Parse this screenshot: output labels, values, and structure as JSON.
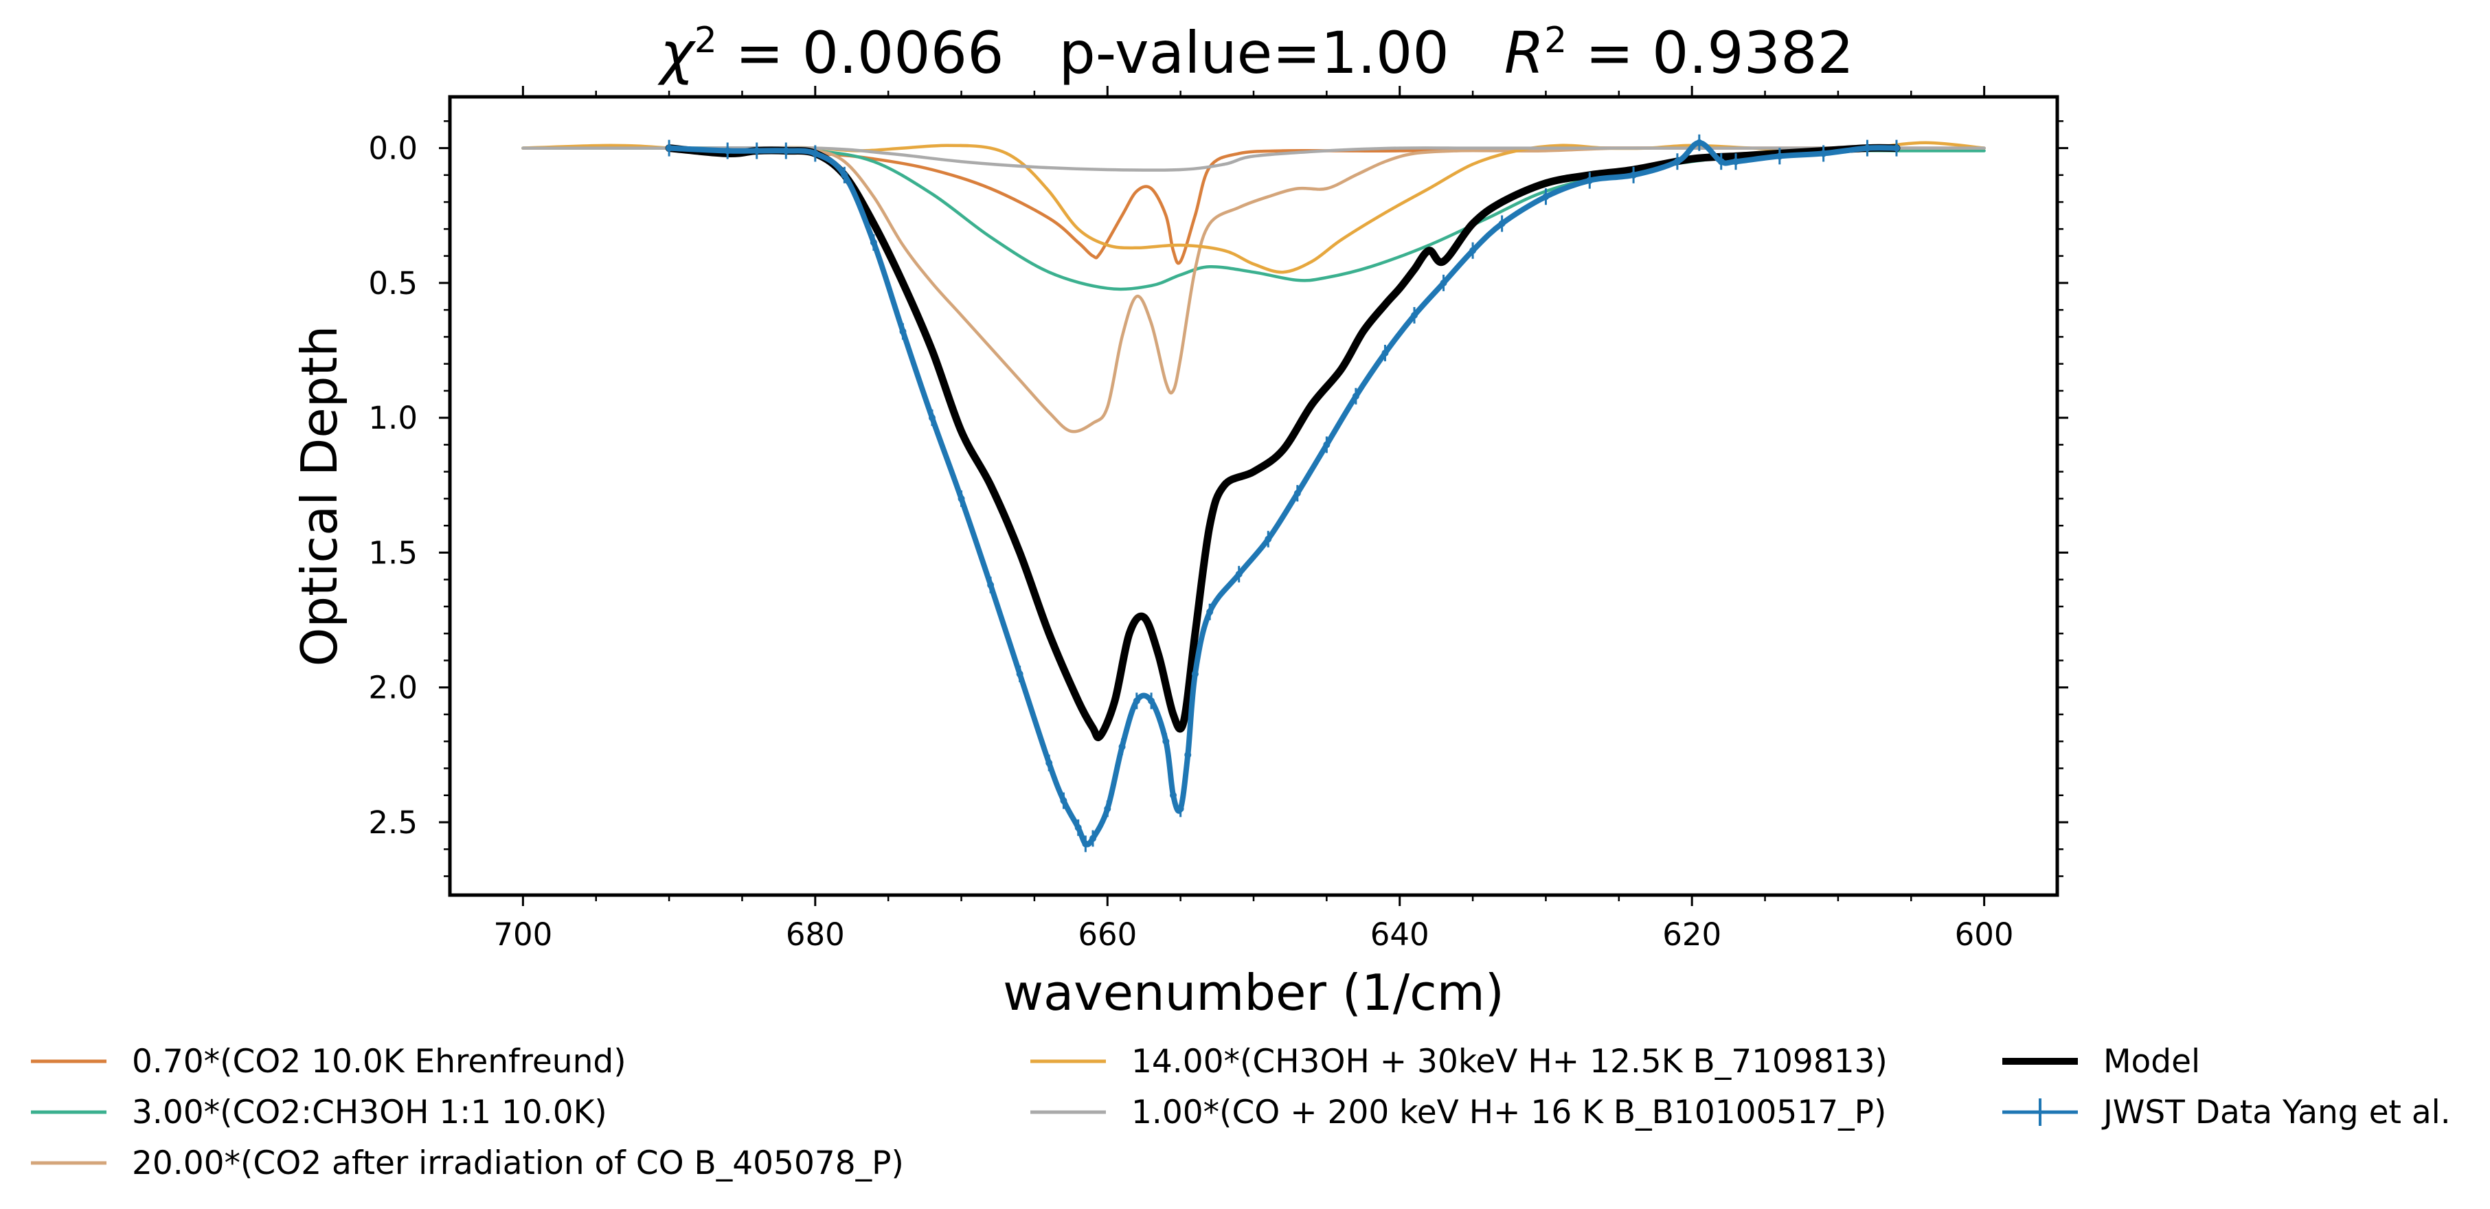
{
  "chart_data": {
    "type": "line",
    "title_parts": {
      "chi2": "0.0066",
      "p_value": "p-value=1.00",
      "r2": "0.9382"
    },
    "xlabel": "wavenumber (1/cm)",
    "ylabel": "Optical Depth",
    "x_inverted": true,
    "y_inverted": true,
    "xlim": [
      705,
      595
    ],
    "ylim": [
      -0.19,
      2.77
    ],
    "xticks": [
      700,
      680,
      660,
      640,
      620,
      600
    ],
    "xtick_labels": [
      "700",
      "680",
      "660",
      "640",
      "620",
      "600"
    ],
    "yticks": [
      0.0,
      0.5,
      1.0,
      1.5,
      2.0,
      2.5
    ],
    "ytick_labels": [
      "0.0",
      "0.5",
      "1.0",
      "1.5",
      "2.0",
      "2.5"
    ],
    "grid": false,
    "legend_position": "bottom, below axes, 3 columns",
    "series": [
      {
        "name": "0.70*(CO2 10.0K Ehrenfreund)",
        "color": "#d97f3c",
        "style": "line",
        "x": [
          700,
          690,
          680,
          676,
          672,
          668,
          664,
          662,
          661,
          660.5,
          659,
          658,
          657,
          656,
          655.5,
          655,
          654,
          653,
          651,
          648,
          644,
          640,
          630,
          620,
          610,
          600
        ],
        "y": [
          0.0,
          0.0,
          0.02,
          0.04,
          0.08,
          0.15,
          0.26,
          0.35,
          0.4,
          0.39,
          0.25,
          0.16,
          0.15,
          0.25,
          0.38,
          0.42,
          0.25,
          0.07,
          0.02,
          0.01,
          0.01,
          0.01,
          0.0,
          0.0,
          0.0,
          0.0
        ]
      },
      {
        "name": "3.00*(CO2:CH3OH 1:1 10.0K)",
        "color": "#3bb08f",
        "style": "line",
        "x": [
          700,
          690,
          685,
          680,
          676,
          672,
          668,
          664,
          660,
          657,
          655,
          653,
          650,
          647,
          645,
          642,
          638,
          634,
          630,
          625,
          620,
          615,
          610,
          605,
          600
        ],
        "y": [
          0.0,
          0.0,
          0.0,
          0.01,
          0.05,
          0.17,
          0.33,
          0.46,
          0.52,
          0.51,
          0.47,
          0.44,
          0.46,
          0.49,
          0.48,
          0.44,
          0.36,
          0.26,
          0.16,
          0.09,
          0.05,
          0.02,
          0.01,
          0.01,
          0.01
        ]
      },
      {
        "name": "20.00*(CO2 after irradiation of CO B_405078_P)",
        "color": "#d4a57a",
        "style": "line",
        "x": [
          700,
          690,
          683,
          680,
          678,
          676,
          674,
          672,
          670,
          668,
          666,
          664,
          662.5,
          661,
          660,
          659,
          658,
          657,
          656,
          655.5,
          655,
          654,
          653,
          651,
          649,
          647,
          645,
          643,
          641,
          639,
          636,
          633,
          630,
          625,
          620,
          610,
          600
        ],
        "y": [
          0.0,
          0.0,
          0.01,
          0.01,
          0.05,
          0.18,
          0.36,
          0.5,
          0.62,
          0.74,
          0.86,
          0.98,
          1.05,
          1.02,
          0.96,
          0.7,
          0.55,
          0.65,
          0.87,
          0.9,
          0.78,
          0.45,
          0.28,
          0.22,
          0.18,
          0.15,
          0.15,
          0.1,
          0.05,
          0.02,
          0.01,
          0.01,
          0.01,
          0.0,
          0.0,
          0.0,
          0.0
        ]
      },
      {
        "name": "14.00*(CH3OH + 30keV H+ 12.5K B_7109813)",
        "color": "#e6a73e",
        "style": "line",
        "x": [
          700,
          694,
          690,
          686,
          683,
          680,
          677,
          674,
          671,
          668,
          666,
          664,
          662,
          660,
          658,
          655,
          652,
          650,
          648,
          646,
          644,
          641,
          638,
          635,
          632,
          629,
          626,
          623,
          620,
          616,
          612,
          608,
          604,
          600
        ],
        "y": [
          0.0,
          -0.01,
          0.0,
          0.02,
          0.0,
          0.0,
          0.01,
          0.0,
          -0.01,
          0.0,
          0.05,
          0.16,
          0.3,
          0.36,
          0.37,
          0.36,
          0.38,
          0.43,
          0.46,
          0.42,
          0.34,
          0.24,
          0.15,
          0.06,
          0.01,
          -0.01,
          0.0,
          0.0,
          -0.01,
          0.0,
          0.01,
          0.0,
          -0.02,
          0.0
        ]
      },
      {
        "name": "1.00*(CO + 200 keV H+ 16 K B_B10100517_P)",
        "color": "#aaaaaa",
        "style": "line",
        "x": [
          700,
          690,
          680,
          675,
          670,
          665,
          660,
          655,
          652,
          650,
          645,
          640,
          635,
          630,
          620,
          610,
          600
        ],
        "y": [
          0.0,
          0.0,
          0.0,
          0.02,
          0.05,
          0.07,
          0.08,
          0.08,
          0.06,
          0.03,
          0.01,
          0.0,
          0.0,
          0.0,
          0.0,
          0.0,
          0.0
        ]
      },
      {
        "name": "Model",
        "color": "#000000",
        "style": "thick-line",
        "x": [
          690,
          686,
          684,
          682,
          680,
          678,
          676,
          674,
          672,
          670,
          668,
          666,
          664,
          662,
          661,
          660.5,
          659.5,
          658.5,
          657.5,
          656.5,
          655.5,
          654.8,
          654,
          653,
          652,
          650,
          648,
          646,
          644,
          642.5,
          641,
          640,
          639,
          638,
          637,
          635,
          633,
          630,
          627,
          624,
          620,
          617,
          614,
          611,
          608,
          606
        ],
        "y": [
          0.0,
          0.02,
          0.01,
          0.01,
          0.02,
          0.1,
          0.28,
          0.5,
          0.75,
          1.05,
          1.25,
          1.5,
          1.8,
          2.05,
          2.15,
          2.18,
          2.05,
          1.8,
          1.74,
          1.88,
          2.1,
          2.13,
          1.8,
          1.4,
          1.25,
          1.2,
          1.12,
          0.95,
          0.82,
          0.68,
          0.58,
          0.52,
          0.45,
          0.38,
          0.42,
          0.28,
          0.2,
          0.13,
          0.1,
          0.08,
          0.04,
          0.03,
          0.02,
          0.01,
          0.0,
          0.0
        ]
      },
      {
        "name": "JWST Data Yang et al.",
        "color": "#1f77b4",
        "style": "errorbar",
        "x": [
          690,
          686,
          684,
          682,
          680,
          678,
          676,
          674,
          672,
          670,
          668,
          666,
          664,
          663,
          662,
          661.5,
          661,
          660,
          659,
          658,
          657,
          656,
          655.5,
          655,
          654.5,
          654,
          653,
          651,
          649,
          647,
          645,
          643,
          641,
          639,
          637,
          635,
          633,
          630,
          627,
          624,
          621,
          619.5,
          618,
          617,
          614,
          611,
          608,
          606
        ],
        "y": [
          0.0,
          0.01,
          0.01,
          0.01,
          0.02,
          0.1,
          0.35,
          0.68,
          1.0,
          1.3,
          1.62,
          1.95,
          2.28,
          2.42,
          2.52,
          2.58,
          2.56,
          2.45,
          2.22,
          2.05,
          2.05,
          2.2,
          2.4,
          2.45,
          2.25,
          1.95,
          1.72,
          1.58,
          1.45,
          1.28,
          1.1,
          0.92,
          0.76,
          0.62,
          0.5,
          0.38,
          0.28,
          0.18,
          0.12,
          0.1,
          0.05,
          -0.02,
          0.05,
          0.05,
          0.03,
          0.02,
          0.0,
          0.0
        ]
      }
    ]
  }
}
